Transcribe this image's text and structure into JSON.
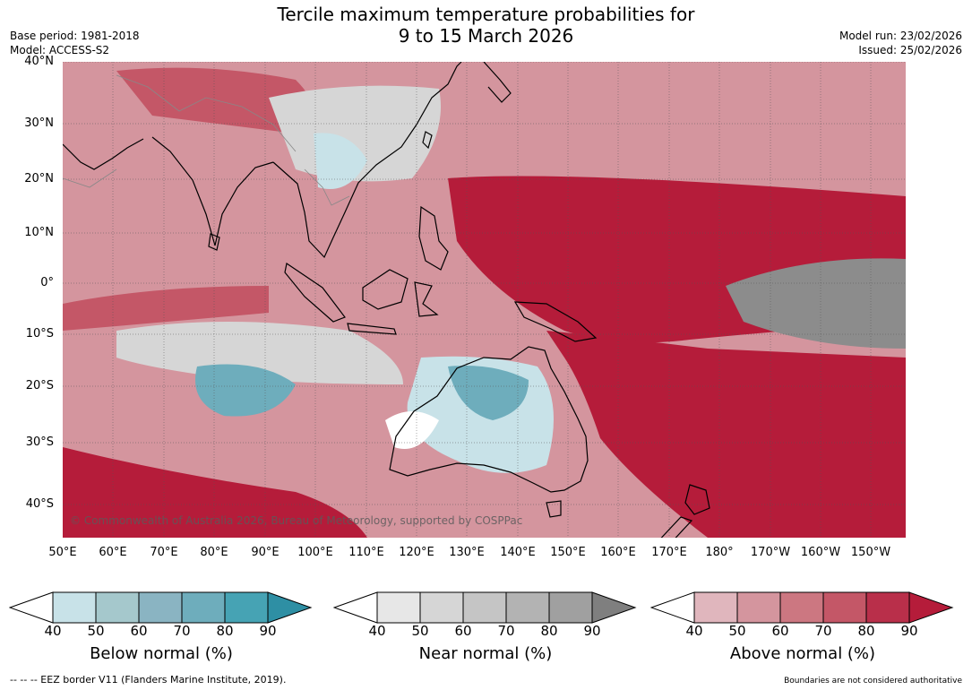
{
  "title_line1": "Tercile maximum temperature probabilities for",
  "title_line2": "9 to 15 March 2026",
  "meta_left": [
    "Base period: 1981-2018",
    "Model: ACCESS-S2"
  ],
  "meta_right": [
    "Model run: 23/02/2026",
    "Issued: 25/02/2026"
  ],
  "copyright": "© Commonwealth of Australia 2026, Bureau of Meteorology, supported by COSPPac",
  "lat_labels": [
    "40°N",
    "30°N",
    "20°N",
    "10°N",
    "0°",
    "10°S",
    "20°S",
    "30°S",
    "40°S"
  ],
  "lon_labels": [
    "50°E",
    "60°E",
    "70°E",
    "80°E",
    "90°E",
    "100°E",
    "110°E",
    "120°E",
    "130°E",
    "140°E",
    "150°E",
    "160°E",
    "170°E",
    "180°",
    "170°W",
    "160°W",
    "150°W"
  ],
  "legends": [
    {
      "title": "Below normal (%)",
      "ticks": [
        "40",
        "50",
        "60",
        "70",
        "80",
        "90"
      ],
      "colors": [
        "#ffffff",
        "#c8e2e8",
        "#a5c8cc",
        "#8ab4c2",
        "#6eadbc",
        "#46a3b4",
        "#2e8fa4"
      ]
    },
    {
      "title": "Near normal (%)",
      "ticks": [
        "40",
        "50",
        "60",
        "70",
        "80",
        "90"
      ],
      "colors": [
        "#ffffff",
        "#e7e7e7",
        "#d6d6d6",
        "#c5c5c5",
        "#b3b3b3",
        "#a0a0a0",
        "#7f7f7f"
      ]
    },
    {
      "title": "Above normal (%)",
      "ticks": [
        "40",
        "50",
        "60",
        "70",
        "80",
        "90"
      ],
      "colors": [
        "#ffffff",
        "#e0b6bd",
        "#d4959e",
        "#cc7781",
        "#c45767",
        "#b92f4a",
        "#b51c3a"
      ]
    }
  ],
  "footer_left": "--  --  -- EEZ border V11 (Flanders Marine Institute, 2019).",
  "footer_right": "Boundaries are not considered authoritative",
  "map_colors": {
    "above_high": "#b51c3a",
    "above_mid": "#c45767",
    "above_low": "#d4959e",
    "near": "#d6d6d6",
    "near_high": "#8c8c8c",
    "below_low": "#c8e2e8",
    "below_mid": "#6eadbc",
    "white": "#ffffff"
  }
}
